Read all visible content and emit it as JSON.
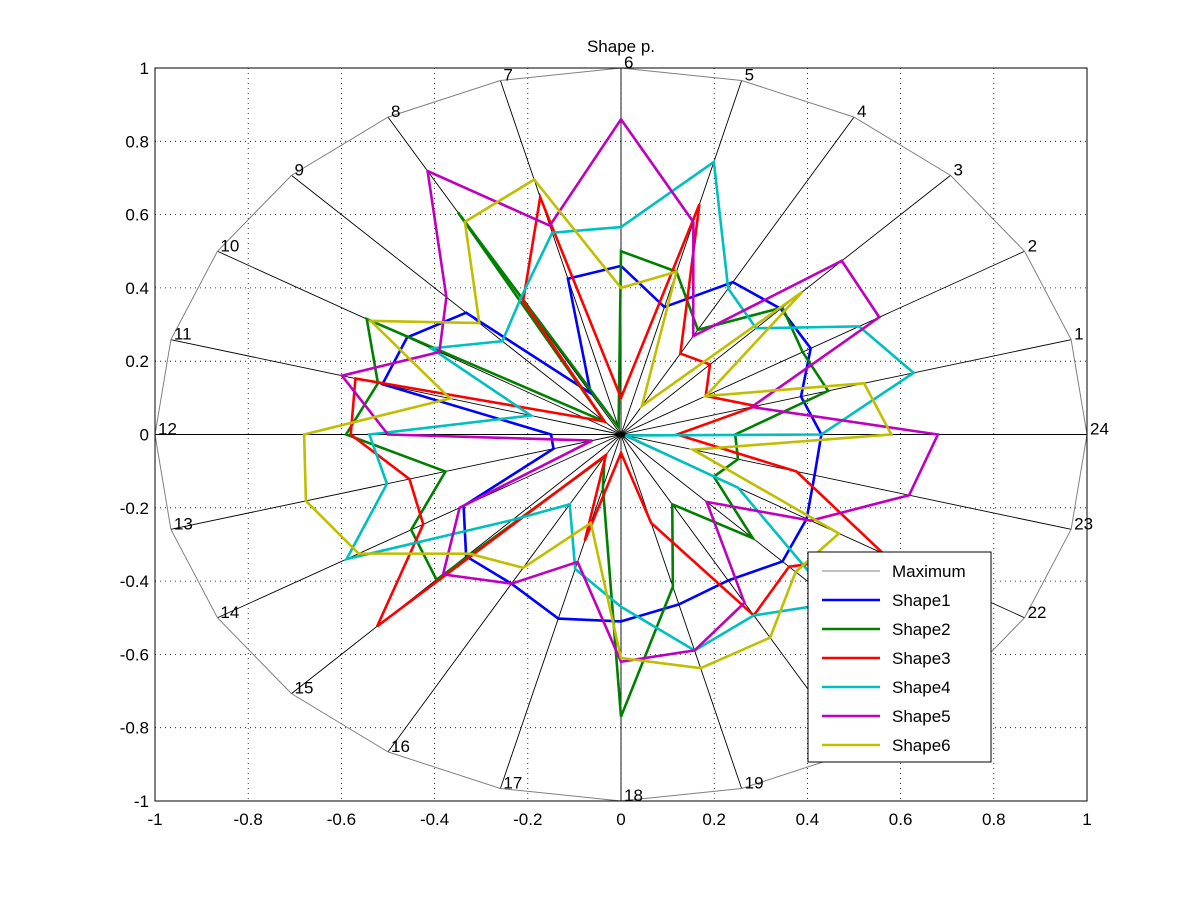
{
  "chart_data": {
    "type": "radar",
    "title": "Shape p.",
    "xlim": [
      -1,
      1
    ],
    "ylim": [
      -1,
      1
    ],
    "xticks": [
      "-1",
      "-0.8",
      "-0.6",
      "-0.4",
      "-0.2",
      "0",
      "0.2",
      "0.4",
      "0.6",
      "0.8",
      "1"
    ],
    "yticks": [
      "-1",
      "-0.8",
      "-0.6",
      "-0.4",
      "-0.2",
      "0",
      "0.2",
      "0.4",
      "0.6",
      "0.8",
      "1"
    ],
    "grid": true,
    "grid_style": "dotted",
    "legend_position": "bottom-right",
    "spoke_labels": [
      "1",
      "2",
      "3",
      "4",
      "5",
      "6",
      "7",
      "8",
      "9",
      "10",
      "11",
      "12",
      "13",
      "14",
      "15",
      "16",
      "17",
      "18",
      "19",
      "20",
      "21",
      "22",
      "23",
      "24"
    ],
    "maximum": {
      "name": "Maximum",
      "value": 1,
      "color": "#808080"
    },
    "series": [
      {
        "name": "Shape1",
        "color": "#0000ff",
        "values": [
          0.4,
          0.47,
          0.485,
          0.48,
          0.36,
          0.46,
          0.44,
          0.13,
          0.47,
          0.53,
          0.53,
          0.15,
          0.15,
          0.39,
          0.47,
          0.47,
          0.52,
          0.51,
          0.48,
          0.46,
          0.49,
          0.46,
          0.43,
          0.43
        ]
      },
      {
        "name": "Shape2",
        "color": "#008000",
        "values": [
          0.46,
          0.45,
          0.49,
          0.33,
          0.46,
          0.5,
          0.02,
          0.7,
          0.05,
          0.63,
          0.54,
          0.59,
          0.39,
          0.52,
          0.56,
          0.07,
          0.15,
          0.77,
          0.43,
          0.22,
          0.4,
          0.23,
          0.26,
          0.245
        ]
      },
      {
        "name": "Shape3",
        "color": "#ff0000",
        "values": [
          0.3,
          0.21,
          0.27,
          0.255,
          0.65,
          0.1,
          0.67,
          0.42,
          0.05,
          0.09,
          0.59,
          0.58,
          0.47,
          0.49,
          0.74,
          0.065,
          0.3,
          0.05,
          0.25,
          0.57,
          0.51,
          0.65,
          0.39,
          0.12
        ]
      },
      {
        "name": "Shape4",
        "color": "#00bfbf",
        "values": [
          0.65,
          0.59,
          0.41,
          0.46,
          0.77,
          0.566,
          0.57,
          0.43,
          0.36,
          0.47,
          0.2,
          0.54,
          0.52,
          0.68,
          0.33,
          0.22,
          0.38,
          0.47,
          0.61,
          0.57,
          0.65,
          0.29,
          0.01,
          0.43
        ]
      },
      {
        "name": "Shape5",
        "color": "#bf00bf",
        "values": [
          0.29,
          0.64,
          0.67,
          0.31,
          0.6,
          0.86,
          0.59,
          0.83,
          0.53,
          0.45,
          0.62,
          0.5,
          0.064,
          0.4,
          0.54,
          0.47,
          0.36,
          0.62,
          0.61,
          0.53,
          0.26,
          0.47,
          0.64,
          0.68
        ]
      },
      {
        "name": "Shape6",
        "color": "#bfbf00",
        "values": [
          0.54,
          0.21,
          0.55,
          0.09,
          0.46,
          0.4,
          0.72,
          0.67,
          0.43,
          0.62,
          0.38,
          0.68,
          0.7,
          0.65,
          0.46,
          0.42,
          0.25,
          0.61,
          0.66,
          0.64,
          0.53,
          0.54,
          0.16,
          0.58
        ]
      }
    ]
  }
}
